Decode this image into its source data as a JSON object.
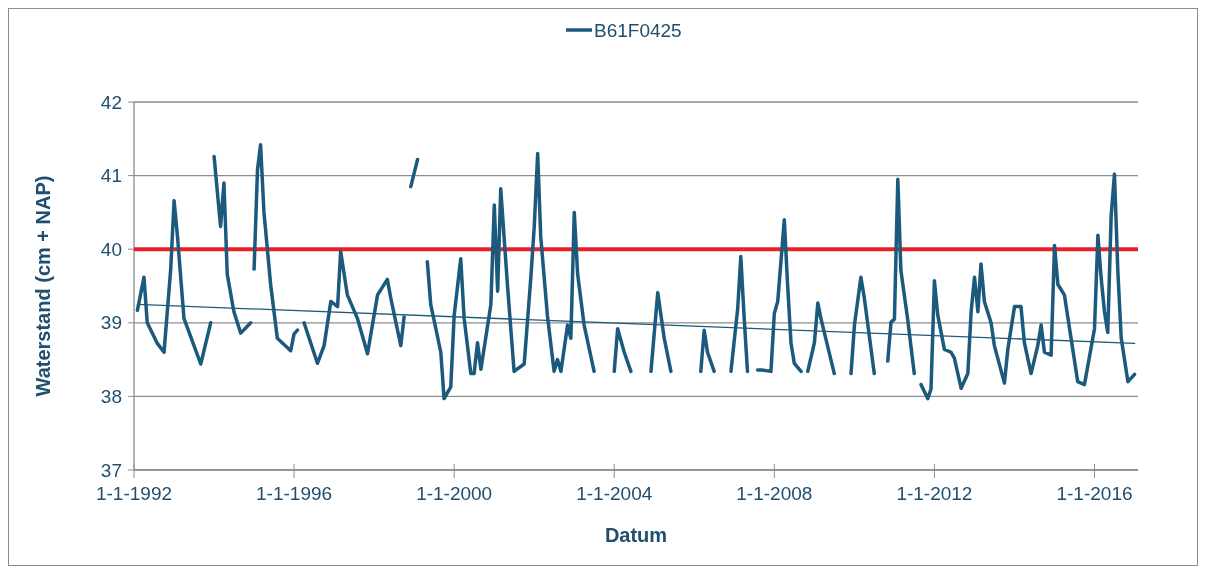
{
  "chart_data": {
    "type": "line",
    "xlabel": "Datum",
    "ylabel": "Waterstand (cm + NAP)",
    "xlim": [
      "1992-01-01",
      "2017-02-01"
    ],
    "xticks": [
      {
        "value": "1992-01-01",
        "label": "1-1-1992"
      },
      {
        "value": "1996-01-01",
        "label": "1-1-1996"
      },
      {
        "value": "2000-01-01",
        "label": "1-1-2000"
      },
      {
        "value": "2004-01-01",
        "label": "1-1-2004"
      },
      {
        "value": "2008-01-01",
        "label": "1-1-2008"
      },
      {
        "value": "2012-01-01",
        "label": "1-1-2012"
      },
      {
        "value": "2016-01-01",
        "label": "1-1-2016"
      }
    ],
    "ylim": [
      37,
      42
    ],
    "yticks": [
      37,
      38,
      39,
      40,
      41,
      42
    ],
    "grid": "y",
    "legend": "top",
    "ref_lines": [
      {
        "axis": "y",
        "value": 40,
        "color": "#e8202a"
      }
    ],
    "series": [
      {
        "name": "B61F0425",
        "color": "#1b5a7d",
        "x": [
          "1992-02",
          "1992-04",
          "1992-05",
          "1992-08",
          "1992-10",
          "1992-12",
          "1993-01",
          "1993-02",
          "1993-04",
          "1993-09",
          "1993-12",
          "1993-12-20",
          "1994-01",
          "1994-03",
          "1994-04",
          "1994-05",
          "1994-07",
          "1994-09",
          "1994-12",
          "1994-12-20",
          "1995-01",
          "1995-02",
          "1995-03",
          "1995-04",
          "1995-06",
          "1995-08",
          "1995-12",
          "1996-01",
          "1996-02",
          "1996-03",
          "1996-04",
          "1996-08",
          "1996-10",
          "1996-12",
          "1997-02",
          "1997-03",
          "1997-05",
          "1997-08",
          "1997-11",
          "1998-02",
          "1998-05",
          "1998-06",
          "1998-09",
          "1998-10",
          "1998-11",
          "1998-12",
          "1999-02",
          "1999-03",
          "1999-05",
          "1999-06",
          "1999-09",
          "1999-10",
          "1999-12",
          "2000-01",
          "2000-03",
          "2000-04",
          "2000-06",
          "2000-07",
          "2000-08",
          "2000-09",
          "2000-12",
          "2001-01",
          "2001-02",
          "2001-03",
          "2001-05",
          "2001-07",
          "2001-10",
          "2001-12",
          "2002-01",
          "2002-02",
          "2002-03",
          "2002-05",
          "2002-07",
          "2002-08",
          "2002-09",
          "2002-11",
          "2002-12",
          "2003-01",
          "2003-02",
          "2003-04",
          "2003-07",
          "2003-10",
          "2004-01",
          "2004-02",
          "2004-04",
          "2004-06",
          "2004-09",
          "2004-12",
          "2005-02",
          "2005-04",
          "2005-06",
          "2005-10",
          "2006-03",
          "2006-04",
          "2006-05",
          "2006-07",
          "2006-10",
          "2006-12",
          "2007-02",
          "2007-03",
          "2007-04",
          "2007-05",
          "2007-07",
          "2007-08",
          "2007-09",
          "2007-12",
          "2008-01",
          "2008-02",
          "2008-04",
          "2008-05",
          "2008-06",
          "2008-07",
          "2008-09",
          "2008-10",
          "2008-11",
          "2009-01",
          "2009-02",
          "2009-03",
          "2009-07",
          "2009-10",
          "2009-12",
          "2010-01",
          "2010-03",
          "2010-04",
          "2010-07",
          "2010-09",
          "2010-11",
          "2010-12",
          "2011-01",
          "2011-02",
          "2011-03",
          "2011-05",
          "2011-07",
          "2011-08",
          "2011-09",
          "2011-11",
          "2011-12",
          "2012-01",
          "2012-02",
          "2012-04",
          "2012-06",
          "2012-07",
          "2012-09",
          "2012-11",
          "2012-12",
          "2013-01",
          "2013-02",
          "2013-03",
          "2013-04",
          "2013-06",
          "2013-07",
          "2013-10",
          "2013-11",
          "2014-01",
          "2014-03",
          "2014-04",
          "2014-06",
          "2014-08",
          "2014-09",
          "2014-10",
          "2014-12",
          "2015-01",
          "2015-02",
          "2015-04",
          "2015-06",
          "2015-08",
          "2015-10",
          "2016-01",
          "2016-02",
          "2016-03",
          "2016-04",
          "2016-05",
          "2016-06",
          "2016-07",
          "2016-08",
          "2016-09",
          "2016-11",
          "2017-01"
        ],
        "values": [
          39.17,
          39.62,
          39.0,
          38.72,
          38.6,
          39.73,
          40.66,
          40.17,
          39.06,
          38.44,
          39.0,
          null,
          41.26,
          40.31,
          40.9,
          39.66,
          39.15,
          38.86,
          39.0,
          null,
          39.73,
          41.08,
          41.42,
          40.5,
          39.52,
          38.79,
          38.62,
          38.85,
          38.9,
          null,
          39.0,
          38.45,
          38.69,
          39.29,
          39.22,
          39.97,
          39.38,
          39.06,
          38.58,
          39.38,
          39.59,
          39.34,
          38.69,
          39.08,
          null,
          40.85,
          41.22,
          null,
          39.83,
          39.25,
          38.6,
          37.97,
          38.13,
          39.1,
          39.87,
          39.06,
          38.31,
          38.31,
          38.73,
          38.37,
          39.25,
          40.6,
          39.43,
          40.82,
          39.52,
          38.34,
          38.44,
          39.62,
          40.31,
          41.3,
          40.17,
          39.1,
          38.34,
          38.5,
          38.34,
          38.97,
          38.79,
          40.5,
          39.66,
          38.97,
          38.34,
          null,
          38.34,
          38.92,
          38.6,
          38.34,
          null,
          38.34,
          39.41,
          38.79,
          38.34,
          null,
          38.34,
          38.9,
          38.6,
          38.34,
          null,
          38.34,
          39.2,
          39.9,
          39.06,
          38.34,
          null,
          38.36,
          38.36,
          38.34,
          39.13,
          39.29,
          40.4,
          39.52,
          38.73,
          38.45,
          38.34,
          null,
          38.34,
          38.73,
          39.27,
          39.06,
          38.31,
          null,
          38.31,
          38.97,
          39.62,
          39.34,
          38.31,
          null,
          38.48,
          39.01,
          39.05,
          40.95,
          39.71,
          39.06,
          38.31,
          null,
          38.16,
          37.97,
          38.1,
          39.57,
          39.1,
          38.64,
          38.6,
          38.52,
          38.11,
          38.31,
          39.15,
          39.62,
          39.15,
          39.8,
          39.29,
          39.0,
          38.69,
          38.18,
          38.64,
          39.22,
          39.22,
          38.73,
          38.31,
          38.69,
          38.97,
          38.6,
          38.56,
          40.05,
          39.52,
          39.38,
          38.79,
          38.2,
          38.16,
          38.92,
          40.19,
          39.62,
          39.15,
          38.87,
          40.45,
          41.02,
          39.7,
          38.79,
          38.2,
          38.3
        ]
      },
      {
        "color": "#1b5a7d",
        "x": [
          "1992-02",
          "2017-01"
        ],
        "values": [
          39.25,
          38.72
        ]
      }
    ]
  }
}
